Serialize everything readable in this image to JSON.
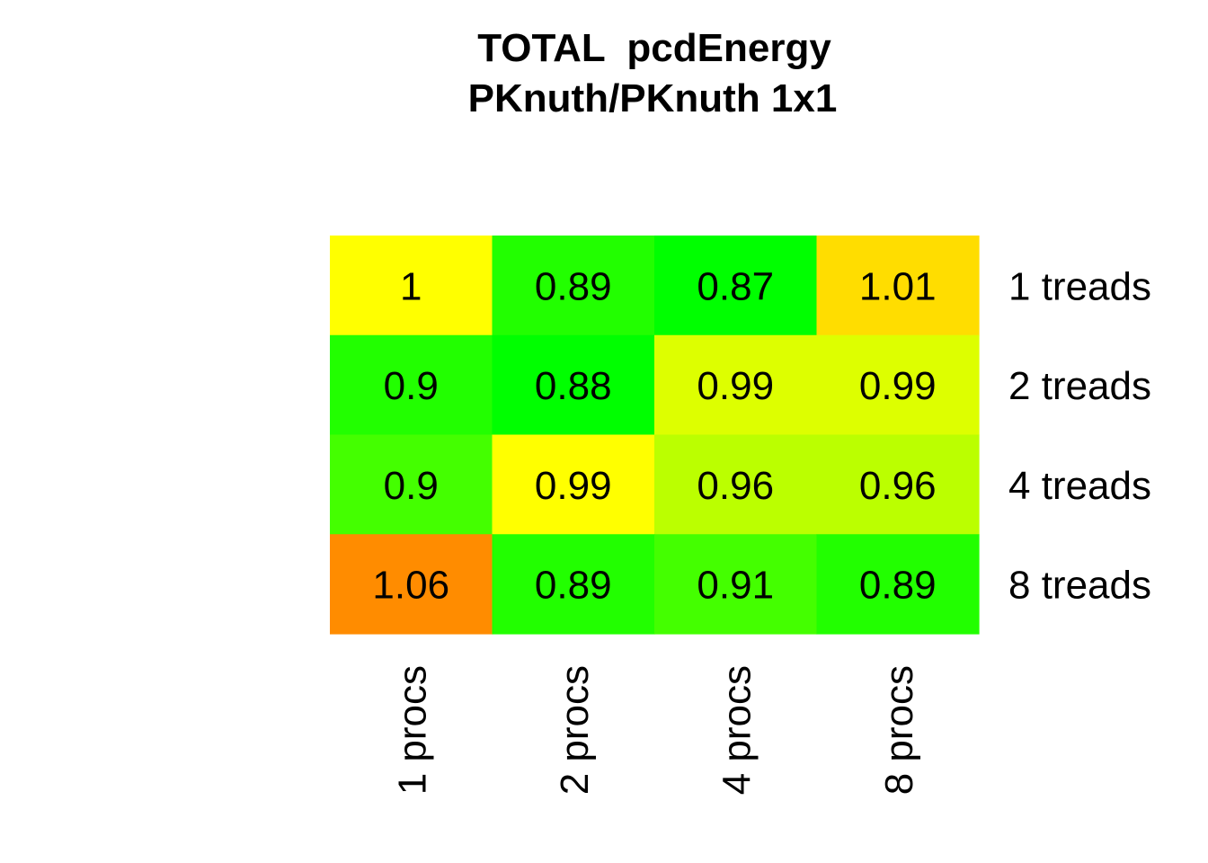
{
  "chart_data": {
    "type": "heatmap",
    "title_line1": "TOTAL  pcdEnergy",
    "title_line2": "PKnuth/PKnuth 1x1",
    "columns": [
      "1 procs",
      "2 procs",
      "4 procs",
      "8 procs"
    ],
    "rows": [
      "1 treads",
      "2 treads",
      "4 treads",
      "8 treads"
    ],
    "values": [
      [
        1,
        0.89,
        0.87,
        1.01
      ],
      [
        0.9,
        0.88,
        0.99,
        0.99
      ],
      [
        0.9,
        0.99,
        0.96,
        0.96
      ],
      [
        1.06,
        0.89,
        0.91,
        0.89
      ]
    ],
    "value_labels": [
      [
        "1",
        "0.89",
        "0.87",
        "1.01"
      ],
      [
        "0.9",
        "0.88",
        "0.99",
        "0.99"
      ],
      [
        "0.9",
        "0.99",
        "0.96",
        "0.96"
      ],
      [
        "1.06",
        "0.89",
        "0.91",
        "0.89"
      ]
    ],
    "cell_colors": [
      [
        "#ffff00",
        "#22ff00",
        "#00ff00",
        "#ffdd00"
      ],
      [
        "#22ff00",
        "#00ff00",
        "#ddff00",
        "#ddff00"
      ],
      [
        "#44ff00",
        "#ffff00",
        "#bbff00",
        "#bbff00"
      ],
      [
        "#ff8c00",
        "#22ff00",
        "#44ff00",
        "#22ff00"
      ]
    ],
    "legend": "none",
    "grid": false
  }
}
